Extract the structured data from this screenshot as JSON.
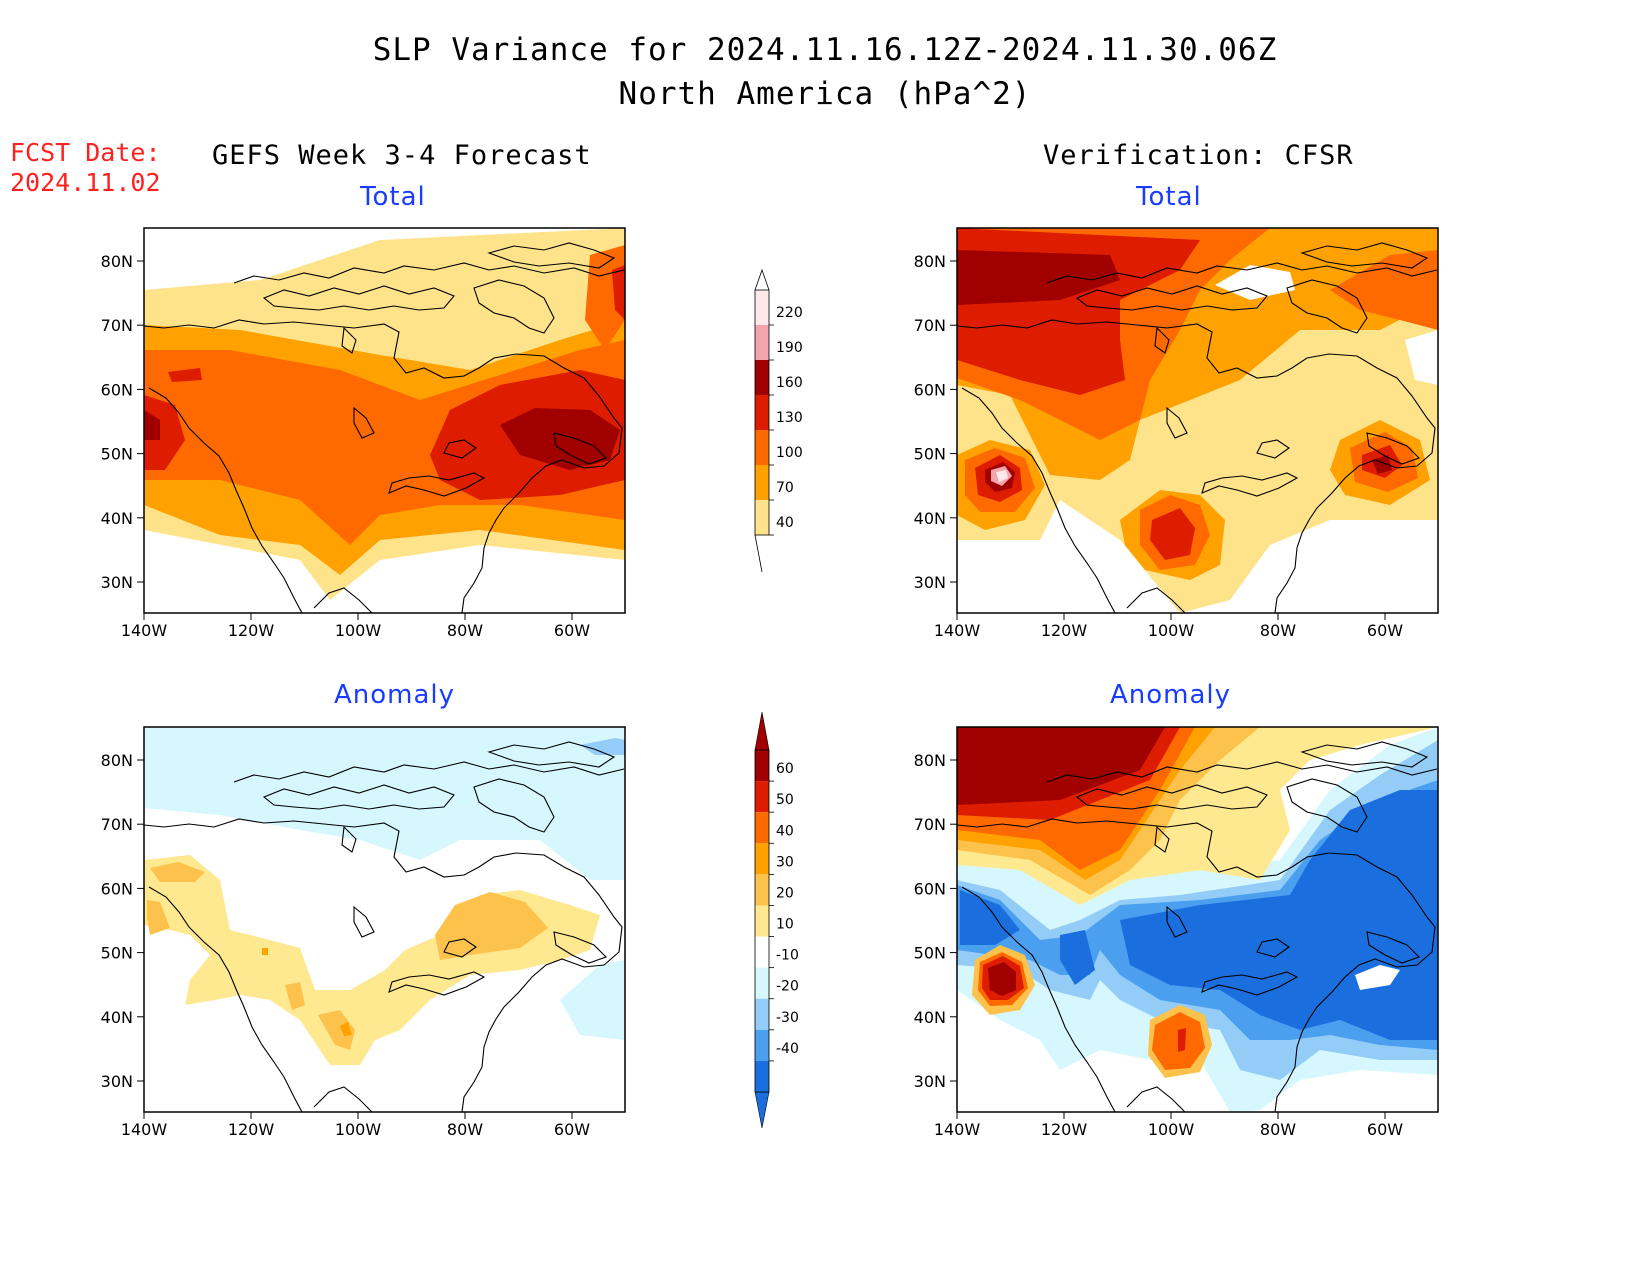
{
  "header": {
    "title_line1": "SLP Variance for 2024.11.16.12Z-2024.11.30.06Z",
    "title_line2": "North America (hPa^2)",
    "fcst_label": "FCST Date:",
    "fcst_date": "2024.11.02"
  },
  "columns": {
    "left": "GEFS Week 3-4 Forecast",
    "right": "Verification: CFSR"
  },
  "panels": {
    "top_left": "Total",
    "top_right": "Total",
    "bottom_left": "Anomaly",
    "bottom_right": "Anomaly"
  },
  "axes": {
    "lat_labels": [
      "80N",
      "70N",
      "60N",
      "50N",
      "40N",
      "30N"
    ],
    "lon_labels": [
      "140W",
      "120W",
      "100W",
      "80W",
      "60W"
    ]
  },
  "colorbar_total": {
    "levels": [
      "220",
      "190",
      "160",
      "130",
      "100",
      "70",
      "40"
    ],
    "colors": [
      "#fde9ea",
      "#f4a4ac",
      "#a00000",
      "#dd1c00",
      "#ff6a00",
      "#ffa100",
      "#fee38b"
    ]
  },
  "colorbar_anomaly": {
    "levels": [
      "60",
      "50",
      "40",
      "30",
      "20",
      "10",
      "-10",
      "-20",
      "-30",
      "-40"
    ],
    "colors": [
      "#a00000",
      "#dd1c00",
      "#ff6a00",
      "#ffa100",
      "#fdc24b",
      "#fee890",
      "#ffffff",
      "#d6f7fd",
      "#93cdf7",
      "#4aa0ef",
      "#1b6ede"
    ]
  }
}
